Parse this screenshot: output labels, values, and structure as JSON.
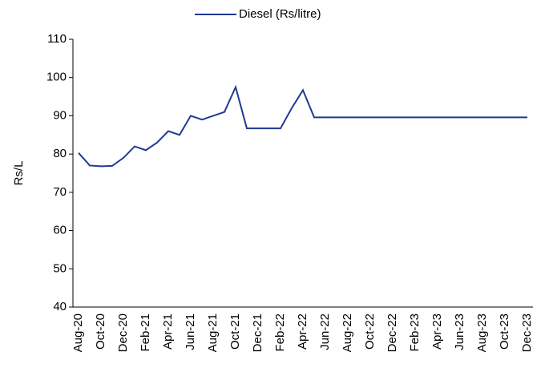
{
  "chart_data": {
    "type": "line",
    "categories": [
      "Aug-20",
      null,
      "Oct-20",
      null,
      "Dec-20",
      null,
      "Feb-21",
      null,
      "Apr-21",
      null,
      "Jun-21",
      null,
      "Aug-21",
      null,
      "Oct-21",
      null,
      "Dec-21",
      null,
      "Feb-22",
      null,
      "Apr-22",
      null,
      "Jun-22",
      null,
      "Aug-22",
      null,
      "Oct-22",
      null,
      "Dec-22",
      null,
      "Feb-23",
      null,
      "Apr-23",
      null,
      "Jun-23",
      null,
      "Aug-23",
      null,
      "Oct-23",
      null,
      "Dec-23"
    ],
    "series": [
      {
        "name": "Diesel (Rs/litre)",
        "color": "#1f3a93",
        "values": [
          80.3,
          77,
          76.8,
          76.9,
          79,
          82,
          81,
          83,
          86,
          85,
          90,
          89,
          90,
          91,
          97.5,
          86.7,
          86.7,
          86.7,
          86.7,
          92,
          96.7,
          89.6,
          89.6,
          89.6,
          89.6,
          89.6,
          89.6,
          89.6,
          89.6,
          89.6,
          89.6,
          89.6,
          89.6,
          89.6,
          89.6,
          89.6,
          89.6,
          89.6,
          89.6,
          89.6,
          89.6
        ]
      }
    ],
    "ylabel": "Rs/L",
    "ylim": [
      40,
      110
    ],
    "yticks": [
      40,
      50,
      60,
      70,
      80,
      90,
      100,
      110
    ],
    "grid": false,
    "legend": "top"
  }
}
